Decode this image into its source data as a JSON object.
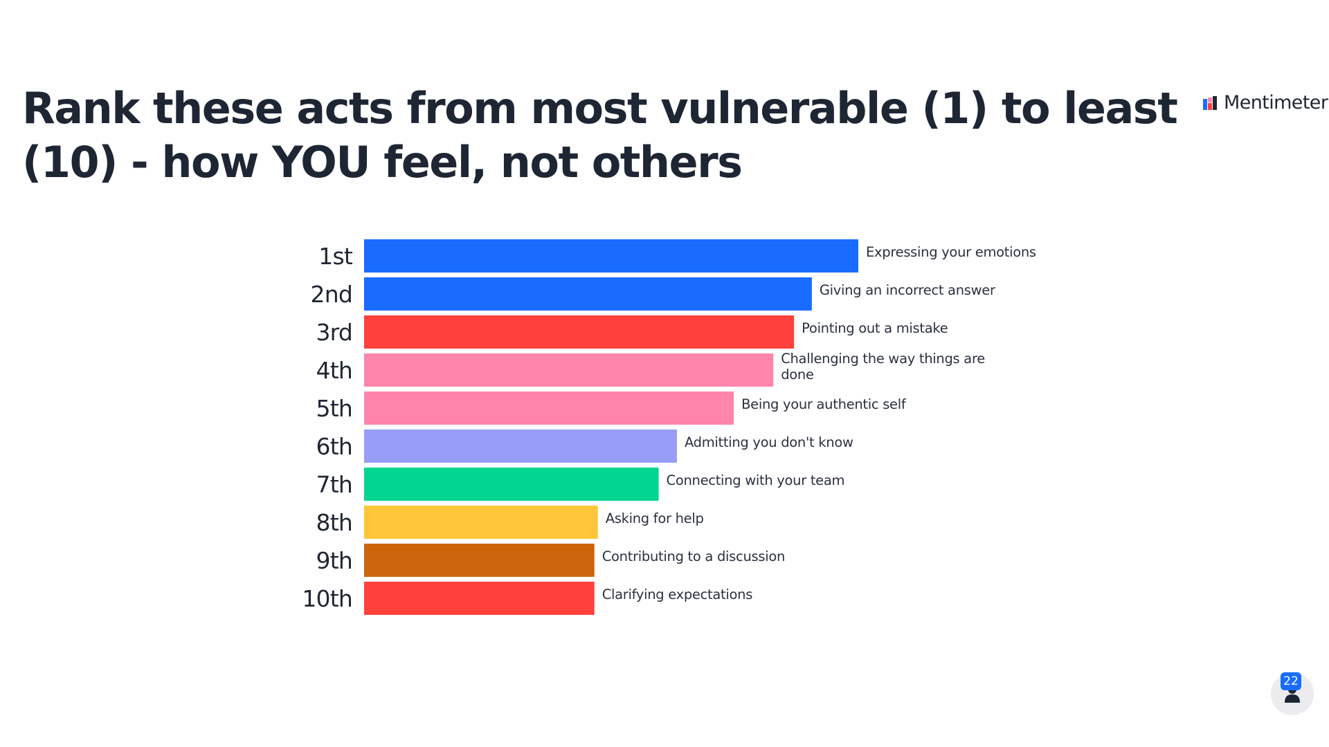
{
  "title": "Rank these acts from most vulnerable (1) to least (10) - how YOU feel, not others",
  "brand": {
    "name": "Mentimeter",
    "logo_colors": [
      "#196cff",
      "#ff4040",
      "#ff85aa",
      "#1f2633"
    ]
  },
  "participants": {
    "count": "22",
    "icon": "person-icon",
    "badge_color": "#196cff"
  },
  "chart_data": {
    "type": "bar",
    "orientation": "horizontal",
    "title": "Rank these acts from most vulnerable (1) to least (10) - how YOU feel, not others",
    "categories": [
      "1st",
      "2nd",
      "3rd",
      "4th",
      "5th",
      "6th",
      "7th",
      "8th",
      "9th",
      "10th"
    ],
    "items": [
      "Expressing your emotions",
      "Giving an incorrect answer",
      "Pointing out a mistake",
      "Challenging the way things are done",
      "Being your authentic self",
      "Admitting you don't know",
      "Connecting with your team",
      "Asking for help",
      "Contributing to a discussion",
      "Clarifying expectations"
    ],
    "values": [
      100,
      90.6,
      87.0,
      82.8,
      74.8,
      63.3,
      59.6,
      47.3,
      46.6,
      46.6
    ],
    "colors": [
      "#196cff",
      "#196cff",
      "#ff403c",
      "#ff85aa",
      "#ff85aa",
      "#989df7",
      "#00d68f",
      "#ffc639",
      "#cc650b",
      "#ff403c"
    ],
    "xlim": [
      0,
      100
    ],
    "grid": false,
    "legend": "none"
  }
}
